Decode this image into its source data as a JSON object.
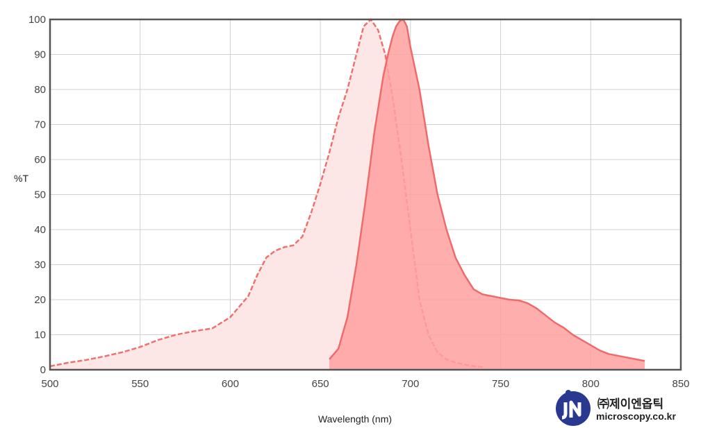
{
  "chart_data": {
    "type": "area",
    "xlabel": "Wavelength (nm)",
    "ylabel": "%T",
    "xlim": [
      500,
      850
    ],
    "ylim": [
      0,
      100
    ],
    "xticks": [
      500,
      550,
      600,
      650,
      700,
      750,
      800,
      850
    ],
    "yticks": [
      0,
      10,
      20,
      30,
      40,
      50,
      60,
      70,
      80,
      90,
      100
    ],
    "grid": true,
    "series": [
      {
        "style": "dashed",
        "color": "#f07070",
        "fill": "#fde6e6",
        "x": [
          500,
          510,
          520,
          530,
          540,
          550,
          560,
          570,
          580,
          590,
          600,
          605,
          610,
          615,
          620,
          625,
          630,
          635,
          640,
          645,
          650,
          655,
          660,
          665,
          670,
          674,
          678,
          682,
          686,
          690,
          695,
          700,
          705,
          710,
          715,
          720,
          725,
          730,
          735,
          740
        ],
        "values": [
          1,
          2,
          2.8,
          3.8,
          5,
          6.5,
          8.5,
          10,
          11,
          11.8,
          15,
          18,
          21,
          27,
          32,
          34,
          35,
          35.5,
          38,
          45,
          53,
          62,
          72,
          80,
          90,
          98,
          100,
          97,
          90,
          78,
          60,
          40,
          20,
          10,
          5,
          3,
          2,
          1.5,
          1,
          0.8
        ]
      },
      {
        "style": "solid",
        "color": "#ef6b6b",
        "fill": "#ffa0a0",
        "x": [
          655,
          660,
          665,
          670,
          675,
          680,
          685,
          688,
          690,
          692,
          694,
          696,
          698,
          700,
          705,
          710,
          715,
          720,
          725,
          730,
          735,
          740,
          745,
          750,
          755,
          760,
          765,
          770,
          775,
          780,
          785,
          790,
          795,
          800,
          805,
          810,
          815,
          820,
          825,
          830
        ],
        "values": [
          3,
          6,
          15,
          30,
          48,
          68,
          84,
          91,
          95,
          98,
          99.5,
          100,
          98,
          92,
          80,
          64,
          50,
          40,
          32,
          27,
          23,
          21.5,
          21,
          20.5,
          20,
          19.8,
          19,
          17.5,
          15.5,
          13.5,
          12,
          10,
          8.5,
          7,
          5.5,
          4.5,
          4,
          3.5,
          3,
          2.5
        ]
      }
    ]
  },
  "watermark": {
    "korean": "㈜제이엔옵틱",
    "url": "microscopy.co.kr",
    "brand_color": "#2a3990"
  }
}
